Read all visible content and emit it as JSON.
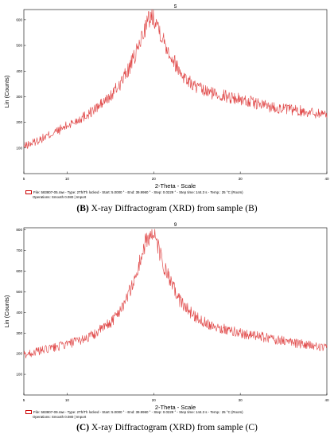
{
  "chart_data": [
    {
      "type": "line",
      "title": "5",
      "ylabel": "Lin (Counts)",
      "xlabel": "2-Theta - Scale",
      "xlim": [
        5,
        40
      ],
      "ylim": [
        0,
        640
      ],
      "x_ticks": [
        5,
        10,
        20,
        30,
        40
      ],
      "y_ticks": [
        100,
        200,
        300,
        400,
        500,
        600
      ],
      "line_color": "#e04848",
      "series": [
        {
          "x": [
            5,
            7,
            9,
            11,
            13,
            15,
            16,
            17,
            18,
            18.5,
            19,
            19.5,
            20,
            20.5,
            21,
            22,
            23,
            24,
            25,
            26,
            28,
            30,
            32,
            34,
            36,
            38,
            40
          ],
          "values": [
            105,
            135,
            168,
            205,
            245,
            300,
            345,
            400,
            470,
            520,
            570,
            605,
            615,
            580,
            530,
            460,
            400,
            360,
            335,
            320,
            305,
            290,
            272,
            258,
            248,
            240,
            232
          ]
        }
      ],
      "legend": {
        "line1": "File: 583807-05.raw - Type: 2Th/Th locked - Start: 5.0000 ° - End: 39.9960 ° - Step: 0.0229 ° - Step time: 144.3 s - Temp.: 25 °C (Room)",
        "line2": "Operations: Smooth 0.080 | Import"
      },
      "caption_label": "(B)",
      "caption_text": " X-ray Diffractogram (XRD) from sample (B)"
    },
    {
      "type": "line",
      "title": "9",
      "ylabel": "Lin (Counts)",
      "xlabel": "2-Theta - Scale",
      "xlim": [
        5,
        40
      ],
      "ylim": [
        0,
        810
      ],
      "x_ticks": [
        5,
        10,
        20,
        30,
        40
      ],
      "y_ticks": [
        100,
        200,
        300,
        400,
        500,
        600,
        700,
        800
      ],
      "line_color": "#e04848",
      "series": [
        {
          "x": [
            5,
            7,
            9,
            11,
            13,
            15,
            16,
            17,
            18,
            18.5,
            19,
            19.5,
            20,
            20.5,
            21,
            22,
            23,
            24,
            25,
            26,
            28,
            30,
            32,
            34,
            36,
            38,
            40
          ],
          "values": [
            195,
            215,
            235,
            258,
            290,
            350,
            405,
            480,
            580,
            660,
            730,
            775,
            770,
            720,
            640,
            540,
            460,
            410,
            375,
            350,
            320,
            300,
            285,
            270,
            255,
            240,
            225
          ]
        }
      ],
      "legend": {
        "line1": "File: 583807-09.raw - Type: 2Th/Th locked - Start: 5.0000 ° - End: 39.9960 ° - Step: 0.0229 ° - Step time: 144.3 s - Temp.: 25 °C (Room)",
        "line2": "Operations: Smooth 0.080 | Import"
      },
      "caption_label": "(C)",
      "caption_text": " X-ray Diffractogram (XRD) from sample (C)"
    }
  ]
}
